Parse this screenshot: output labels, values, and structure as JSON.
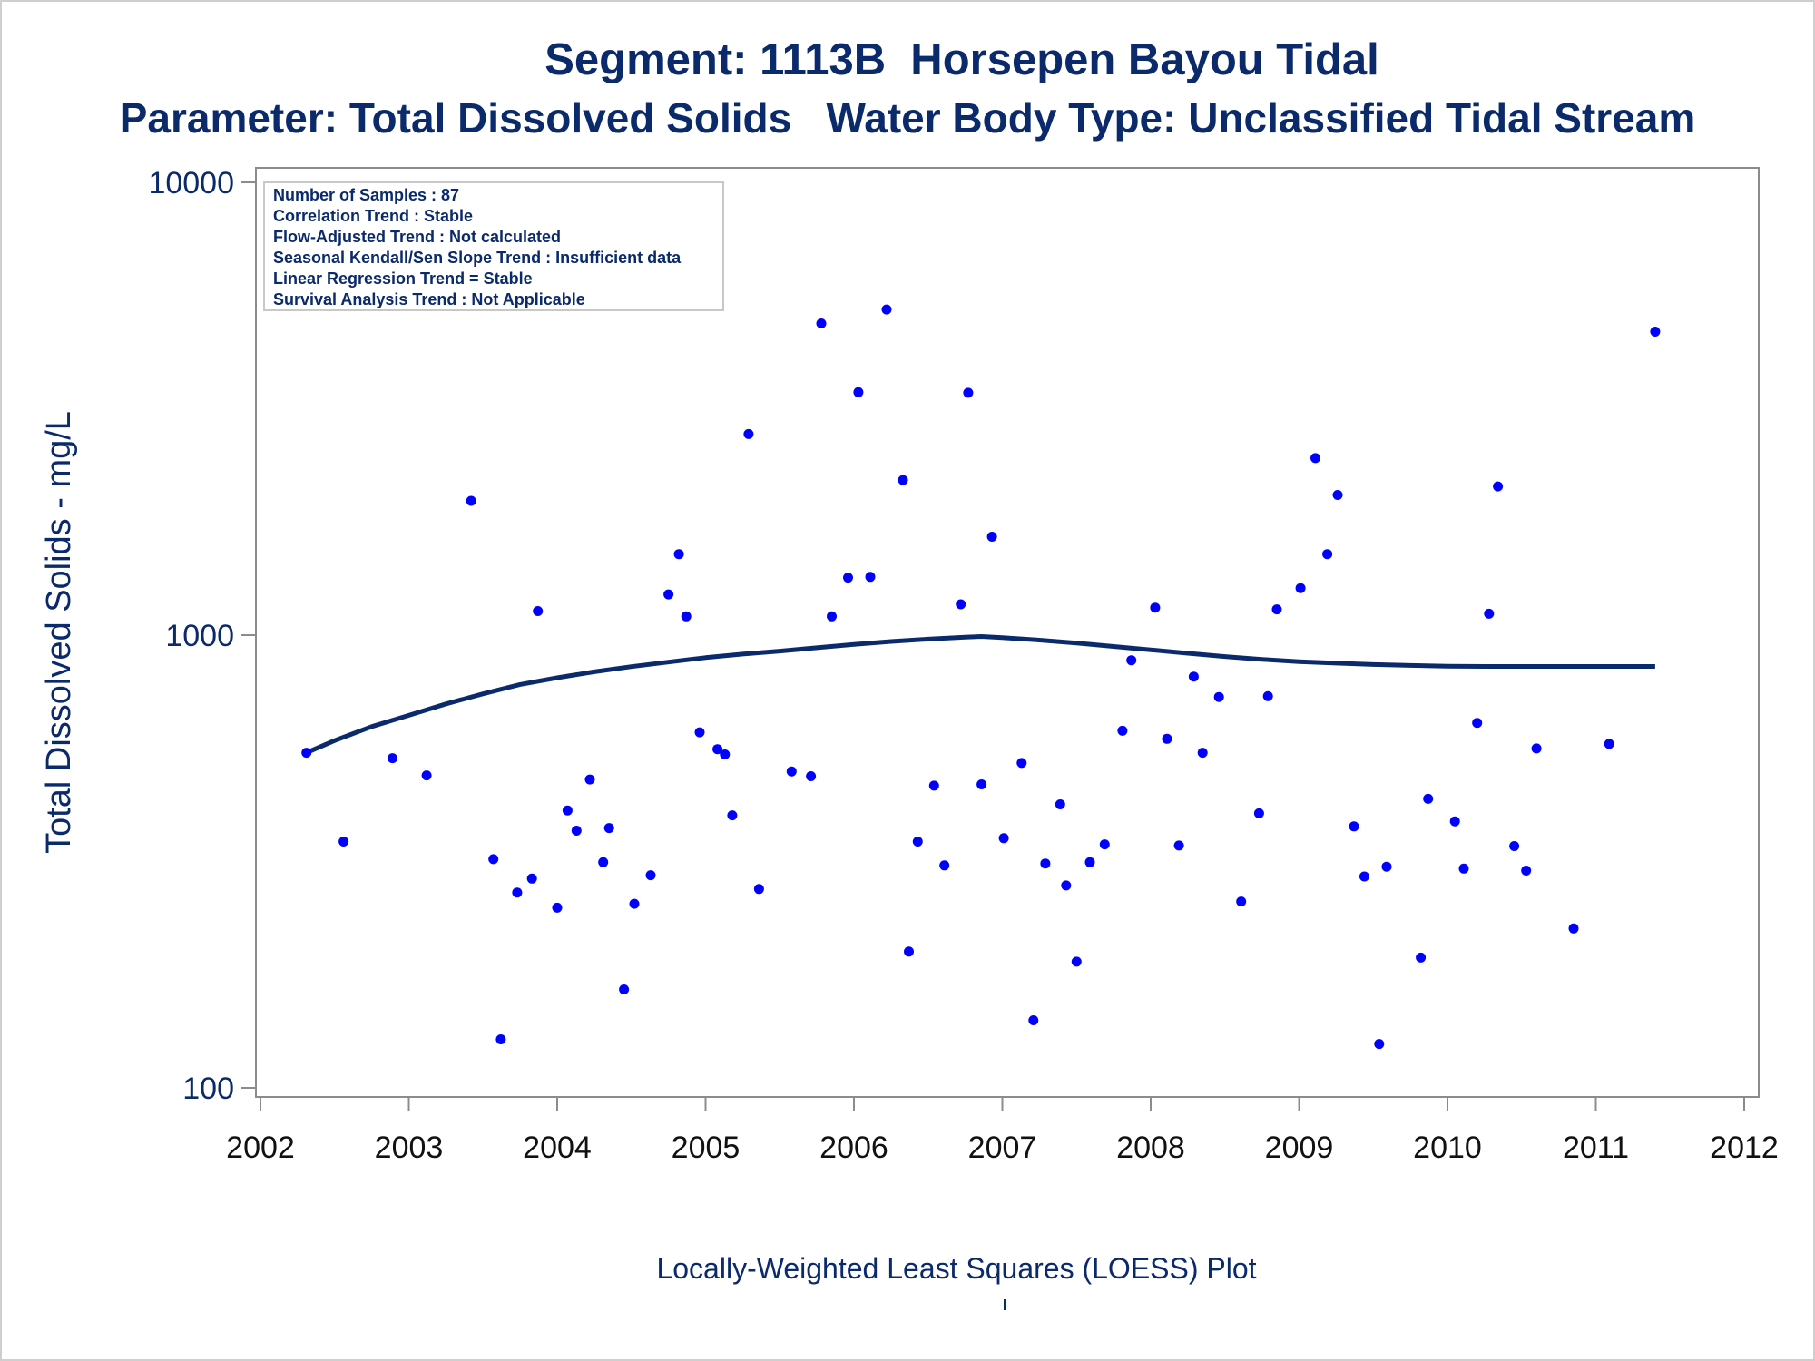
{
  "chart_data": {
    "type": "scatter",
    "title": "Segment: 1113B  Horsepen Bayou Tidal",
    "subtitle": "Parameter: Total Dissolved Solids   Water Body Type: Unclassified Tidal Stream",
    "xlabel": "Locally-Weighted Least Squares (LOESS) Plot",
    "ylabel": "Total Dissolved Solids - mg/L",
    "yscale": "log",
    "xlim": [
      2002,
      2012
    ],
    "ylim": [
      100,
      10000
    ],
    "x_ticks": [
      "2002",
      "2003",
      "2004",
      "2005",
      "2006",
      "2007",
      "2008",
      "2009",
      "2010",
      "2011",
      "2012"
    ],
    "y_ticks": [
      "100",
      "1000",
      "10000"
    ],
    "grid": false,
    "legend": "none",
    "colors": {
      "points": "#0000ff",
      "line": "#0b2a6b",
      "axis": "#8c8c8c",
      "text": "#0b2a6b"
    },
    "info_box": [
      "Number of Samples : 87",
      "Correlation Trend : Stable",
      "Flow-Adjusted Trend : Not calculated",
      "Seasonal Kendall/Sen Slope Trend : Insufficient data",
      "Linear Regression Trend = Stable",
      "Survival Analysis Trend : Not Applicable"
    ],
    "points": [
      [
        2002.31,
        550
      ],
      [
        2002.56,
        350
      ],
      [
        2002.89,
        535
      ],
      [
        2003.12,
        490
      ],
      [
        2003.42,
        1980
      ],
      [
        2003.57,
        320
      ],
      [
        2003.62,
        128
      ],
      [
        2003.73,
        270
      ],
      [
        2003.83,
        290
      ],
      [
        2003.87,
        1130
      ],
      [
        2004.0,
        250
      ],
      [
        2004.07,
        410
      ],
      [
        2004.13,
        370
      ],
      [
        2004.22,
        480
      ],
      [
        2004.31,
        315
      ],
      [
        2004.35,
        375
      ],
      [
        2004.45,
        165
      ],
      [
        2004.52,
        255
      ],
      [
        2004.63,
        295
      ],
      [
        2004.75,
        1230
      ],
      [
        2004.82,
        1510
      ],
      [
        2004.87,
        1100
      ],
      [
        2004.96,
        610
      ],
      [
        2005.08,
        560
      ],
      [
        2005.13,
        545
      ],
      [
        2005.18,
        400
      ],
      [
        2005.29,
        2780
      ],
      [
        2005.36,
        275
      ],
      [
        2005.58,
        500
      ],
      [
        2005.71,
        488
      ],
      [
        2005.78,
        4880
      ],
      [
        2005.85,
        1100
      ],
      [
        2005.96,
        1340
      ],
      [
        2006.03,
        3440
      ],
      [
        2006.11,
        1345
      ],
      [
        2006.22,
        5240
      ],
      [
        2006.33,
        2200
      ],
      [
        2006.37,
        200
      ],
      [
        2006.43,
        350
      ],
      [
        2006.54,
        465
      ],
      [
        2006.61,
        310
      ],
      [
        2006.72,
        1170
      ],
      [
        2006.77,
        3430
      ],
      [
        2006.86,
        468
      ],
      [
        2006.93,
        1650
      ],
      [
        2007.01,
        356
      ],
      [
        2007.13,
        522
      ],
      [
        2007.21,
        141
      ],
      [
        2007.29,
        313
      ],
      [
        2007.39,
        423
      ],
      [
        2007.43,
        280
      ],
      [
        2007.5,
        190
      ],
      [
        2007.59,
        315
      ],
      [
        2007.69,
        345
      ],
      [
        2007.81,
        615
      ],
      [
        2007.87,
        880
      ],
      [
        2008.03,
        1150
      ],
      [
        2008.11,
        590
      ],
      [
        2008.19,
        343
      ],
      [
        2008.29,
        810
      ],
      [
        2008.35,
        550
      ],
      [
        2008.46,
        730
      ],
      [
        2008.61,
        258
      ],
      [
        2008.73,
        404
      ],
      [
        2008.79,
        733
      ],
      [
        2008.85,
        1140
      ],
      [
        2009.01,
        1270
      ],
      [
        2009.11,
        2460
      ],
      [
        2009.19,
        1510
      ],
      [
        2009.26,
        2040
      ],
      [
        2009.37,
        378
      ],
      [
        2009.44,
        293
      ],
      [
        2009.54,
        125
      ],
      [
        2009.59,
        308
      ],
      [
        2009.82,
        194
      ],
      [
        2009.87,
        435
      ],
      [
        2010.05,
        388
      ],
      [
        2010.11,
        305
      ],
      [
        2010.2,
        640
      ],
      [
        2010.28,
        1115
      ],
      [
        2010.34,
        2130
      ],
      [
        2010.45,
        342
      ],
      [
        2010.53,
        302
      ],
      [
        2010.6,
        562
      ],
      [
        2010.85,
        225
      ],
      [
        2011.09,
        575
      ],
      [
        2011.4,
        4680
      ]
    ],
    "loess": [
      [
        2002.31,
        550
      ],
      [
        2002.5,
        585
      ],
      [
        2002.75,
        628
      ],
      [
        2003.0,
        665
      ],
      [
        2003.25,
        705
      ],
      [
        2003.5,
        742
      ],
      [
        2003.75,
        778
      ],
      [
        2004.0,
        805
      ],
      [
        2004.25,
        830
      ],
      [
        2004.5,
        852
      ],
      [
        2004.75,
        872
      ],
      [
        2005.0,
        892
      ],
      [
        2005.25,
        908
      ],
      [
        2005.5,
        922
      ],
      [
        2005.75,
        938
      ],
      [
        2006.0,
        954
      ],
      [
        2006.25,
        968
      ],
      [
        2006.5,
        980
      ],
      [
        2006.75,
        990
      ],
      [
        2006.86,
        993
      ],
      [
        2007.0,
        987
      ],
      [
        2007.25,
        975
      ],
      [
        2007.5,
        960
      ],
      [
        2007.75,
        944
      ],
      [
        2008.0,
        928
      ],
      [
        2008.25,
        912
      ],
      [
        2008.5,
        897
      ],
      [
        2008.75,
        884
      ],
      [
        2009.0,
        874
      ],
      [
        2009.25,
        867
      ],
      [
        2009.5,
        861
      ],
      [
        2009.75,
        857
      ],
      [
        2010.0,
        854
      ],
      [
        2010.25,
        853
      ],
      [
        2010.5,
        853
      ],
      [
        2010.75,
        853
      ],
      [
        2011.0,
        853
      ],
      [
        2011.25,
        853
      ],
      [
        2011.4,
        853
      ]
    ]
  }
}
